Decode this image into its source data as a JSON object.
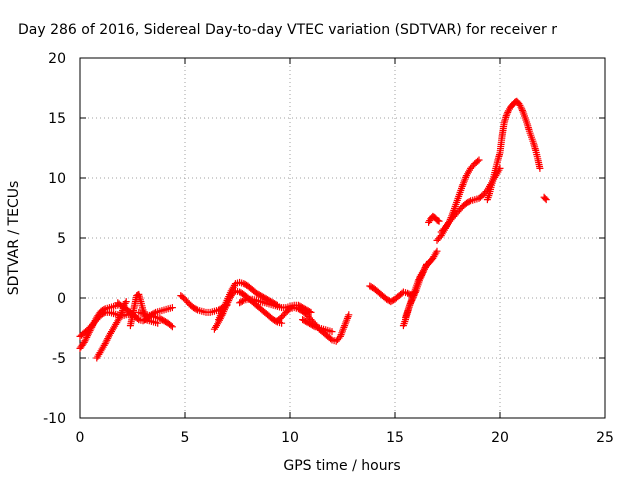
{
  "chart_data": {
    "type": "scatter",
    "title": "Day 286 of 2016, Sidereal Day-to-day VTEC variation (SDTVAR) for receiver r",
    "xlabel": "GPS time / hours",
    "ylabel": "SDTVAR / TECUs",
    "xlim": [
      0,
      25
    ],
    "ylim": [
      -10,
      20
    ],
    "xticks": [
      "0",
      "5",
      "10",
      "15",
      "20",
      "25"
    ],
    "yticks": [
      "-10",
      "-5",
      "0",
      "5",
      "10",
      "15",
      "20"
    ],
    "grid": true,
    "marker": "plus",
    "color": "#ff0000",
    "series": [
      {
        "x": [
          0.0,
          0.2,
          0.4,
          0.6,
          0.8,
          1.0,
          1.2,
          1.4,
          1.6,
          1.8,
          2.0,
          2.2,
          2.5
        ],
        "y": [
          -3.2,
          -2.9,
          -2.6,
          -2.2,
          -1.8,
          -1.4,
          -1.2,
          -1.2,
          -1.3,
          -1.4,
          -1.5,
          -1.4,
          -1.3
        ]
      },
      {
        "x": [
          0.0,
          0.2,
          0.4,
          0.6,
          0.8,
          1.0,
          1.2,
          1.4,
          1.6,
          1.8
        ],
        "y": [
          -4.2,
          -3.7,
          -3.0,
          -2.3,
          -1.6,
          -1.1,
          -0.9,
          -0.8,
          -0.7,
          -0.6
        ]
      },
      {
        "x": [
          0.8,
          1.0,
          1.2,
          1.4,
          1.6,
          1.8,
          2.0,
          2.1,
          2.2
        ],
        "y": [
          -5.0,
          -4.4,
          -3.8,
          -3.1,
          -2.5,
          -1.9,
          -1.2,
          -0.6,
          -0.3
        ]
      },
      {
        "x": [
          1.8,
          2.0,
          2.2,
          2.4,
          2.6,
          2.8
        ],
        "y": [
          -0.4,
          -0.7,
          -0.9,
          -1.2,
          -1.5,
          -1.8
        ]
      },
      {
        "x": [
          2.4,
          2.5,
          2.6,
          2.7,
          2.8,
          2.9,
          3.0,
          3.1
        ],
        "y": [
          -2.3,
          -1.5,
          -0.6,
          0.2,
          0.3,
          -0.3,
          -1.0,
          -1.5
        ]
      },
      {
        "x": [
          2.4,
          2.6,
          2.8,
          3.0,
          3.2,
          3.4,
          3.6,
          3.8,
          4.0,
          4.2,
          4.4
        ],
        "y": [
          -1.2,
          -1.5,
          -1.8,
          -1.9,
          -1.7,
          -1.4,
          -1.2,
          -1.1,
          -1.0,
          -0.9,
          -0.8
        ]
      },
      {
        "x": [
          2.8,
          3.0,
          3.2,
          3.4,
          3.6,
          3.8,
          4.0,
          4.2,
          4.4
        ],
        "y": [
          -1.2,
          -1.3,
          -1.4,
          -1.5,
          -1.6,
          -1.7,
          -1.9,
          -2.1,
          -2.4
        ]
      },
      {
        "x": [
          3.1,
          3.3,
          3.5,
          3.7
        ],
        "y": [
          -1.8,
          -1.9,
          -2.0,
          -2.1
        ]
      },
      {
        "x": [
          4.8,
          5.0,
          5.2,
          5.4,
          5.6,
          5.8,
          6.0,
          6.2,
          6.4,
          6.6,
          6.8,
          7.0
        ],
        "y": [
          0.2,
          -0.1,
          -0.5,
          -0.8,
          -1.0,
          -1.1,
          -1.2,
          -1.2,
          -1.1,
          -1.0,
          -0.8,
          -0.6
        ]
      },
      {
        "x": [
          6.4,
          6.6,
          6.8,
          7.0,
          7.2,
          7.4,
          7.6,
          7.8,
          8.0,
          8.2,
          8.4,
          8.6,
          8.8,
          9.0,
          9.2,
          9.4,
          9.6
        ],
        "y": [
          -2.6,
          -2.0,
          -1.3,
          -0.5,
          0.2,
          0.6,
          0.5,
          0.3,
          0.0,
          -0.3,
          -0.6,
          -0.9,
          -1.2,
          -1.5,
          -1.8,
          -2.0,
          -2.1
        ]
      },
      {
        "x": [
          6.6,
          6.8,
          7.0,
          7.2,
          7.4,
          7.6,
          7.8,
          8.0,
          8.2,
          8.4,
          8.6,
          8.8,
          9.0,
          9.2,
          9.4
        ],
        "y": [
          -1.8,
          -1.0,
          -0.2,
          0.6,
          1.2,
          1.3,
          1.2,
          1.0,
          0.7,
          0.4,
          0.2,
          0.0,
          -0.2,
          -0.4,
          -0.6
        ]
      },
      {
        "x": [
          7.6,
          7.8,
          8.0,
          8.2,
          8.4,
          8.6,
          8.8,
          9.0,
          9.2,
          9.4,
          9.6,
          9.8,
          10.0,
          10.2,
          10.4,
          10.6,
          10.8,
          11.0
        ],
        "y": [
          -0.4,
          -0.2,
          -0.1,
          -0.1,
          -0.2,
          -0.3,
          -0.4,
          -0.5,
          -0.6,
          -0.7,
          -0.8,
          -0.8,
          -0.7,
          -0.6,
          -0.6,
          -0.8,
          -1.0,
          -1.2
        ]
      },
      {
        "x": [
          9.4,
          9.6,
          9.8,
          10.0,
          10.2,
          10.4,
          10.6,
          10.8,
          11.0,
          11.2,
          11.4,
          11.6,
          11.8,
          12.0,
          12.2,
          12.4,
          12.6,
          12.8
        ],
        "y": [
          -1.9,
          -1.6,
          -1.2,
          -0.9,
          -0.8,
          -0.9,
          -1.1,
          -1.4,
          -1.8,
          -2.2,
          -2.6,
          -2.9,
          -3.2,
          -3.5,
          -3.6,
          -3.2,
          -2.3,
          -1.4
        ]
      },
      {
        "x": [
          10.6,
          10.8,
          11.0,
          11.2,
          11.4,
          11.6,
          11.8,
          12.0
        ],
        "y": [
          -1.8,
          -2.0,
          -2.2,
          -2.4,
          -2.5,
          -2.6,
          -2.7,
          -2.8
        ]
      },
      {
        "x": [
          13.8,
          14.0,
          14.2,
          14.4,
          14.6,
          14.8,
          15.0,
          15.2,
          15.4,
          15.6,
          15.8,
          16.0
        ],
        "y": [
          1.0,
          0.8,
          0.5,
          0.2,
          -0.1,
          -0.3,
          -0.1,
          0.2,
          0.5,
          0.4,
          0.2,
          0.6
        ]
      },
      {
        "x": [
          15.4,
          15.5,
          15.6,
          15.7,
          15.8,
          15.9,
          16.0,
          16.1,
          16.2,
          16.3,
          16.4,
          16.5,
          16.6,
          16.7,
          16.8,
          16.9,
          17.0
        ],
        "y": [
          -2.3,
          -1.8,
          -1.2,
          -0.6,
          -0.1,
          0.4,
          0.9,
          1.4,
          1.8,
          2.1,
          2.4,
          2.7,
          2.9,
          3.1,
          3.3,
          3.6,
          3.9
        ]
      },
      {
        "x": [
          15.5,
          15.6,
          15.7,
          15.8,
          15.9,
          16.0,
          16.1,
          16.2,
          16.3,
          16.4,
          16.5
        ],
        "y": [
          -1.6,
          -1.1,
          -0.6,
          -0.2,
          0.2,
          0.6,
          1.1,
          1.6,
          2.0,
          2.4,
          2.8
        ]
      },
      {
        "x": [
          16.6,
          16.7,
          16.8,
          16.9,
          17.0,
          17.1
        ],
        "y": [
          6.3,
          6.6,
          6.8,
          6.7,
          6.5,
          6.4
        ]
      },
      {
        "x": [
          17.0,
          17.2,
          17.4,
          17.6,
          17.8,
          18.0,
          18.2,
          18.4,
          18.6,
          18.8,
          19.0
        ],
        "y": [
          4.8,
          5.2,
          5.8,
          6.4,
          7.3,
          8.3,
          9.3,
          10.2,
          10.8,
          11.2,
          11.5
        ]
      },
      {
        "x": [
          17.2,
          17.4,
          17.6,
          17.8,
          18.0,
          18.2,
          18.4,
          18.6,
          18.8,
          19.0,
          19.2,
          19.4,
          19.6,
          19.8,
          20.0
        ],
        "y": [
          5.5,
          5.9,
          6.4,
          6.8,
          7.2,
          7.6,
          7.9,
          8.1,
          8.2,
          8.3,
          8.6,
          9.0,
          9.6,
          10.2,
          10.8
        ]
      },
      {
        "x": [
          19.4,
          19.5,
          19.6,
          19.7,
          19.8,
          19.9,
          20.0,
          20.1,
          20.2,
          20.3,
          20.4,
          20.5,
          20.6,
          20.7,
          20.8,
          20.9,
          21.0,
          21.1,
          21.2,
          21.3,
          21.4,
          21.5,
          21.6,
          21.7,
          21.8,
          21.9
        ],
        "y": [
          8.2,
          8.7,
          9.4,
          10.1,
          10.8,
          11.5,
          12.1,
          13.5,
          14.6,
          15.2,
          15.6,
          15.9,
          16.1,
          16.3,
          16.4,
          16.2,
          15.9,
          15.5,
          15.0,
          14.5,
          13.9,
          13.4,
          12.9,
          12.3,
          11.6,
          10.8
        ]
      },
      {
        "x": [
          22.1,
          22.2
        ],
        "y": [
          8.4,
          8.2
        ]
      }
    ]
  }
}
